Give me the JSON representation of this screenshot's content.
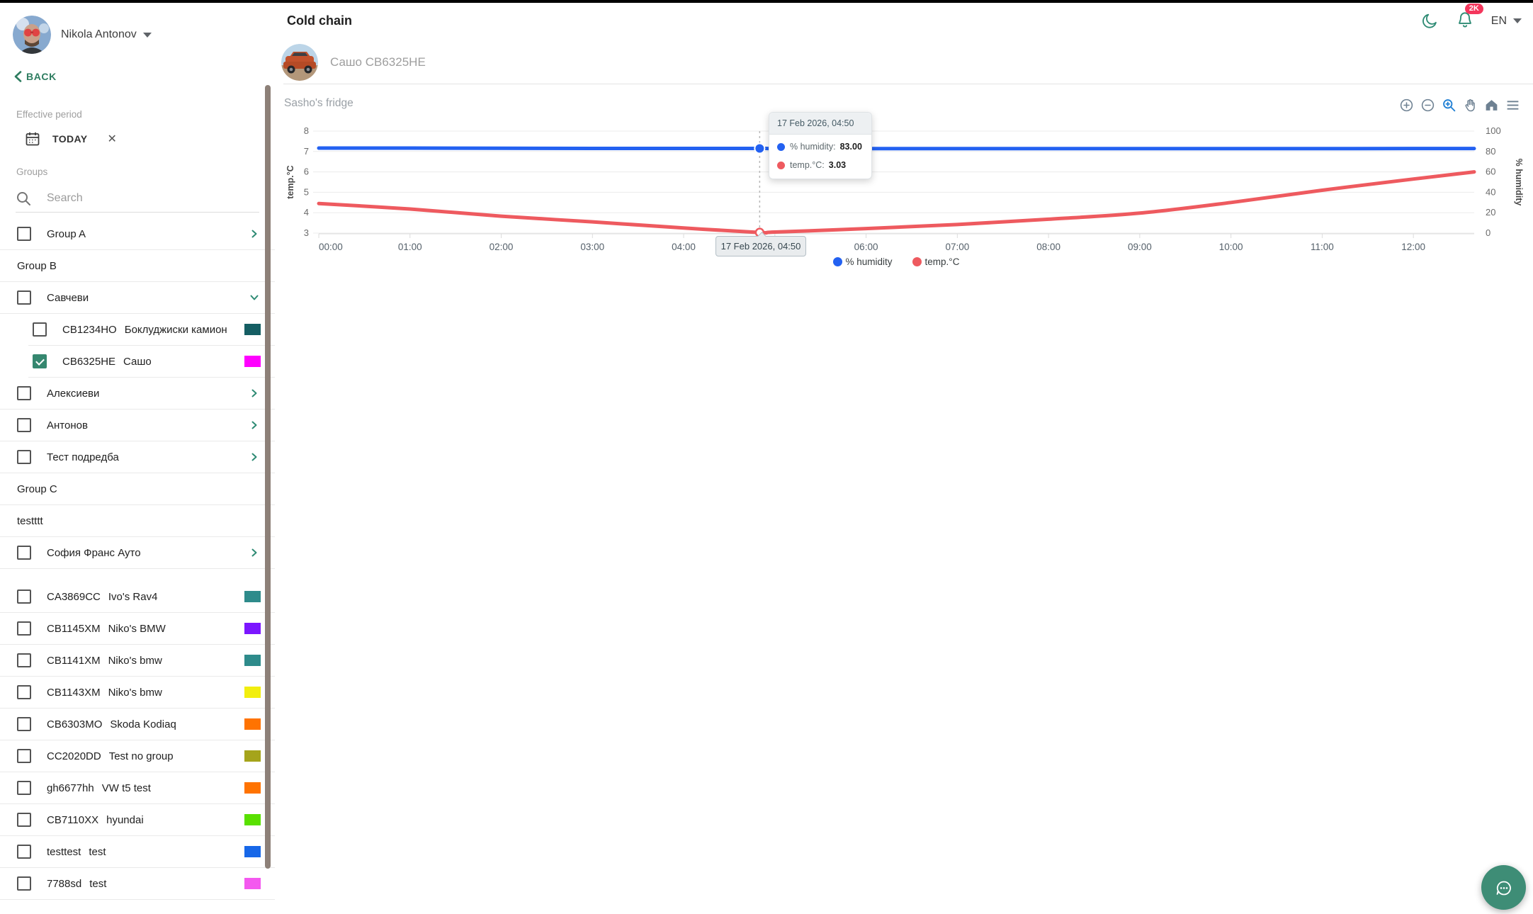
{
  "user": {
    "name": "Nikola Antonov"
  },
  "back_label": "BACK",
  "filters": {
    "effective_period_label": "Effective period",
    "period_value": "TODAY"
  },
  "groups": {
    "label": "Groups",
    "search_placeholder": "Search"
  },
  "sidebar_rows": [
    {
      "kind": "group",
      "label": "Group A",
      "checkbox": true,
      "checked": false,
      "chevron": "right"
    },
    {
      "kind": "header",
      "label": "Group B"
    },
    {
      "kind": "group",
      "label": "Савчеви",
      "checkbox": true,
      "checked": false,
      "chevron": "down"
    },
    {
      "kind": "vehicle",
      "plate": "CB1234HO",
      "name": "Боклуджиски камион",
      "indent": true,
      "checked": false,
      "color": "#155e63"
    },
    {
      "kind": "vehicle",
      "plate": "CB6325HE",
      "name": "Сашо",
      "indent": true,
      "checked": true,
      "color": "#ff00ff"
    },
    {
      "kind": "group",
      "label": "Алексиеви",
      "checkbox": true,
      "checked": false,
      "chevron": "right"
    },
    {
      "kind": "group",
      "label": "Антонов",
      "checkbox": true,
      "checked": false,
      "chevron": "right"
    },
    {
      "kind": "group",
      "label": "Тест подредба",
      "checkbox": true,
      "checked": false,
      "chevron": "right"
    },
    {
      "kind": "header",
      "label": "Group C"
    },
    {
      "kind": "header",
      "label": "testttt"
    },
    {
      "kind": "group",
      "label": "София Франс Ауто",
      "checkbox": true,
      "checked": false,
      "chevron": "right"
    },
    {
      "kind": "spacer"
    },
    {
      "kind": "vehicle",
      "plate": "CA3869CC",
      "name": "Ivo's Rav4",
      "indent": false,
      "checked": false,
      "color": "#2e8b8b"
    },
    {
      "kind": "vehicle",
      "plate": "CB1145XM",
      "name": "Niko's BMW",
      "indent": false,
      "checked": false,
      "color": "#7b16ff"
    },
    {
      "kind": "vehicle",
      "plate": "CB1141XM",
      "name": "Niko's bmw",
      "indent": false,
      "checked": false,
      "color": "#2e8b8b"
    },
    {
      "kind": "vehicle",
      "plate": "CB1143XM",
      "name": "Niko's bmw",
      "indent": false,
      "checked": false,
      "color": "#f2ee0e"
    },
    {
      "kind": "vehicle",
      "plate": "CB6303MO",
      "name": "Skoda Kodiaq",
      "indent": false,
      "checked": false,
      "color": "#ff7301"
    },
    {
      "kind": "vehicle",
      "plate": "CC2020DD",
      "name": "Test no group",
      "indent": false,
      "checked": false,
      "color": "#a5a41b"
    },
    {
      "kind": "vehicle",
      "plate": "gh6677hh",
      "name": "VW t5 test",
      "indent": false,
      "checked": false,
      "color": "#ff7301"
    },
    {
      "kind": "vehicle",
      "plate": "CB7110XX",
      "name": "hyundai",
      "indent": false,
      "checked": false,
      "color": "#59e000"
    },
    {
      "kind": "vehicle",
      "plate": "testtest",
      "name": "test",
      "indent": false,
      "checked": false,
      "color": "#1767e8"
    },
    {
      "kind": "vehicle",
      "plate": "7788sd",
      "name": "test",
      "indent": false,
      "checked": false,
      "color": "#f458ef"
    }
  ],
  "header": {
    "title": "Cold chain",
    "language": "EN",
    "notification_count": "2K"
  },
  "vehicle_header": {
    "name": "Сашо CB6325HE"
  },
  "chart_data": {
    "type": "line",
    "title": "Sasho's fridge",
    "x_ticks": [
      "00:00",
      "01:00",
      "02:00",
      "03:00",
      "04:00",
      "05:00",
      "06:00",
      "07:00",
      "08:00",
      "09:00",
      "10:00",
      "11:00",
      "12:00"
    ],
    "x_range": [
      "00:00",
      "12:40"
    ],
    "grid": true,
    "legend_position": "bottom",
    "left_axis": {
      "label": "temp.°C",
      "ticks": [
        8,
        7,
        6,
        5,
        4,
        3
      ],
      "min": 3,
      "max": 8
    },
    "right_axis": {
      "label": "% humidity",
      "ticks": [
        100,
        80,
        60,
        40,
        20,
        0
      ],
      "min": 0,
      "max": 100
    },
    "series": [
      {
        "name": "% humidity",
        "axis": "right",
        "color": "#2361f1",
        "points": [
          [
            "00:00",
            83.3
          ],
          [
            "01:00",
            83.3
          ],
          [
            "02:00",
            83.2
          ],
          [
            "03:00",
            83.0
          ],
          [
            "04:00",
            83.0
          ],
          [
            "04:50",
            83.0
          ],
          [
            "05:00",
            82.9
          ],
          [
            "06:00",
            82.8
          ],
          [
            "07:00",
            82.8
          ],
          [
            "08:00",
            82.8
          ],
          [
            "09:00",
            82.8
          ],
          [
            "10:00",
            82.8
          ],
          [
            "11:00",
            82.8
          ],
          [
            "12:00",
            82.9
          ],
          [
            "12:40",
            82.9
          ]
        ]
      },
      {
        "name": "temp.°C",
        "axis": "left",
        "color": "#ee5a5f",
        "points": [
          [
            "00:00",
            4.45
          ],
          [
            "01:00",
            4.18
          ],
          [
            "02:00",
            3.83
          ],
          [
            "03:00",
            3.55
          ],
          [
            "04:00",
            3.25
          ],
          [
            "04:50",
            3.03
          ],
          [
            "05:00",
            3.05
          ],
          [
            "06:00",
            3.22
          ],
          [
            "07:00",
            3.42
          ],
          [
            "08:00",
            3.68
          ],
          [
            "09:00",
            3.98
          ],
          [
            "10:00",
            4.5
          ],
          [
            "11:00",
            5.1
          ],
          [
            "12:00",
            5.65
          ],
          [
            "12:40",
            6.0
          ]
        ]
      }
    ],
    "hover_time": "04:50",
    "toolbar_icons": [
      "zoom-in",
      "zoom-out",
      "selection-zoom",
      "pan",
      "home",
      "menu"
    ]
  },
  "tooltip": {
    "title": "17 Feb 2026, 04:50",
    "rows": [
      {
        "label": "% humidity:",
        "value": "83.00",
        "color": "#2361f1"
      },
      {
        "label": "temp.°C:",
        "value": "3.03",
        "color": "#ee5a5f"
      }
    ]
  },
  "x_tooltip": "17 Feb 2026, 04:50",
  "legend": [
    {
      "label": "% humidity",
      "color": "#2361f1"
    },
    {
      "label": "temp.°C",
      "color": "#ee5a5f"
    }
  ],
  "colors": {
    "accent": "#2e7d60",
    "badge": "#f4365c",
    "fab": "#3e8d76"
  }
}
